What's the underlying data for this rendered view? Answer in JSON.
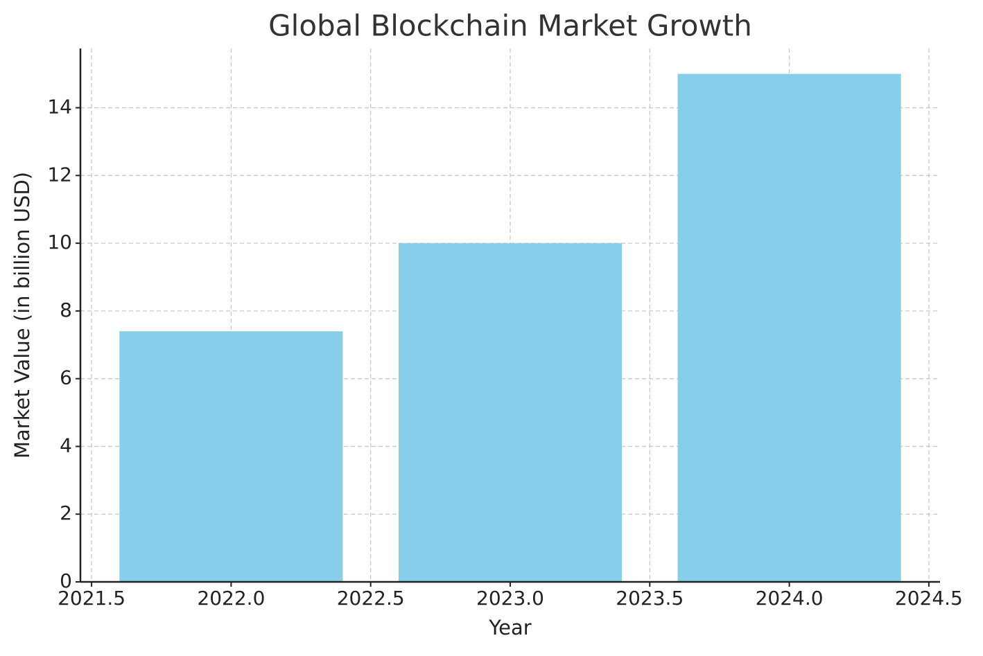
{
  "chart_data": {
    "type": "bar",
    "title": "Global Blockchain Market Growth",
    "x_label": "Year",
    "y_label": "Market Value (in billion USD)",
    "x": [
      2022,
      2023,
      2024
    ],
    "values": [
      7.4,
      10,
      15
    ],
    "color": "#87ceeb",
    "xlim": [
      2021.46,
      2024.54
    ],
    "xticks": [
      2021.5,
      {
        "value": 2022,
        "label": "2022.0"
      },
      2022.5,
      {
        "value": 2023,
        "label": "2023.0"
      },
      2023.5,
      {
        "value": 2024,
        "label": "2024.0"
      },
      2024.5
    ],
    "ylim": [
      0,
      15.75
    ],
    "yticks": [
      0,
      2,
      4,
      6,
      8,
      10,
      12,
      14
    ],
    "grid": true
  }
}
